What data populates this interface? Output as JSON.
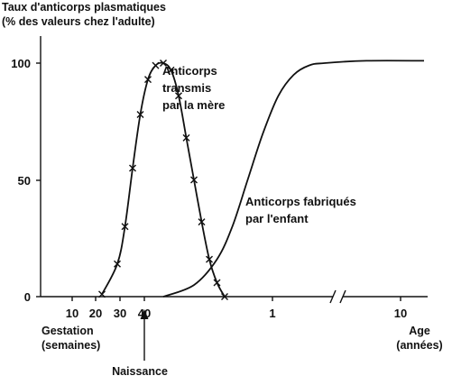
{
  "chart_data": {
    "type": "line",
    "ylabel_lines": [
      "Taux d'anticorps plasmatiques",
      "(% des valeurs chez l'adulte)"
    ],
    "yticks": [
      0,
      50,
      100
    ],
    "ylim": [
      0,
      100
    ],
    "x_segments": [
      {
        "unit": "semaines",
        "ticks": [
          10,
          20,
          30
        ],
        "label_lines": [
          "Gestation",
          "(semaines)"
        ]
      },
      {
        "unit": "naissance",
        "ticks": [
          40
        ]
      },
      {
        "unit": "années",
        "ticks": [
          1,
          10
        ],
        "label_lines": [
          "Age",
          "(années)"
        ]
      }
    ],
    "birth_label": "Naissance",
    "series": [
      {
        "name_lines": [
          "Anticorps",
          "transmis",
          "par la mère"
        ],
        "markers": "x",
        "points": [
          {
            "t": 0.16,
            "y": 1
          },
          {
            "t": 0.2,
            "y": 14
          },
          {
            "t": 0.22,
            "y": 30
          },
          {
            "t": 0.24,
            "y": 55
          },
          {
            "t": 0.26,
            "y": 78
          },
          {
            "t": 0.28,
            "y": 93
          },
          {
            "t": 0.3,
            "y": 99
          },
          {
            "t": 0.32,
            "y": 100
          },
          {
            "t": 0.34,
            "y": 97
          },
          {
            "t": 0.36,
            "y": 86
          },
          {
            "t": 0.38,
            "y": 68
          },
          {
            "t": 0.4,
            "y": 50
          },
          {
            "t": 0.42,
            "y": 32
          },
          {
            "t": 0.44,
            "y": 16
          },
          {
            "t": 0.46,
            "y": 6
          },
          {
            "t": 0.48,
            "y": 0
          }
        ]
      },
      {
        "name_lines": [
          "Anticorps fabriqués",
          "par l'enfant"
        ],
        "markers": "none",
        "points": [
          {
            "t": 0.32,
            "y": 0
          },
          {
            "t": 0.4,
            "y": 5
          },
          {
            "t": 0.46,
            "y": 16
          },
          {
            "t": 0.5,
            "y": 30
          },
          {
            "t": 0.54,
            "y": 50
          },
          {
            "t": 0.58,
            "y": 70
          },
          {
            "t": 0.62,
            "y": 86
          },
          {
            "t": 0.66,
            "y": 95
          },
          {
            "t": 0.7,
            "y": 99
          },
          {
            "t": 0.74,
            "y": 100
          },
          {
            "t": 0.85,
            "y": 101
          },
          {
            "t": 1.0,
            "y": 101
          }
        ]
      }
    ]
  }
}
